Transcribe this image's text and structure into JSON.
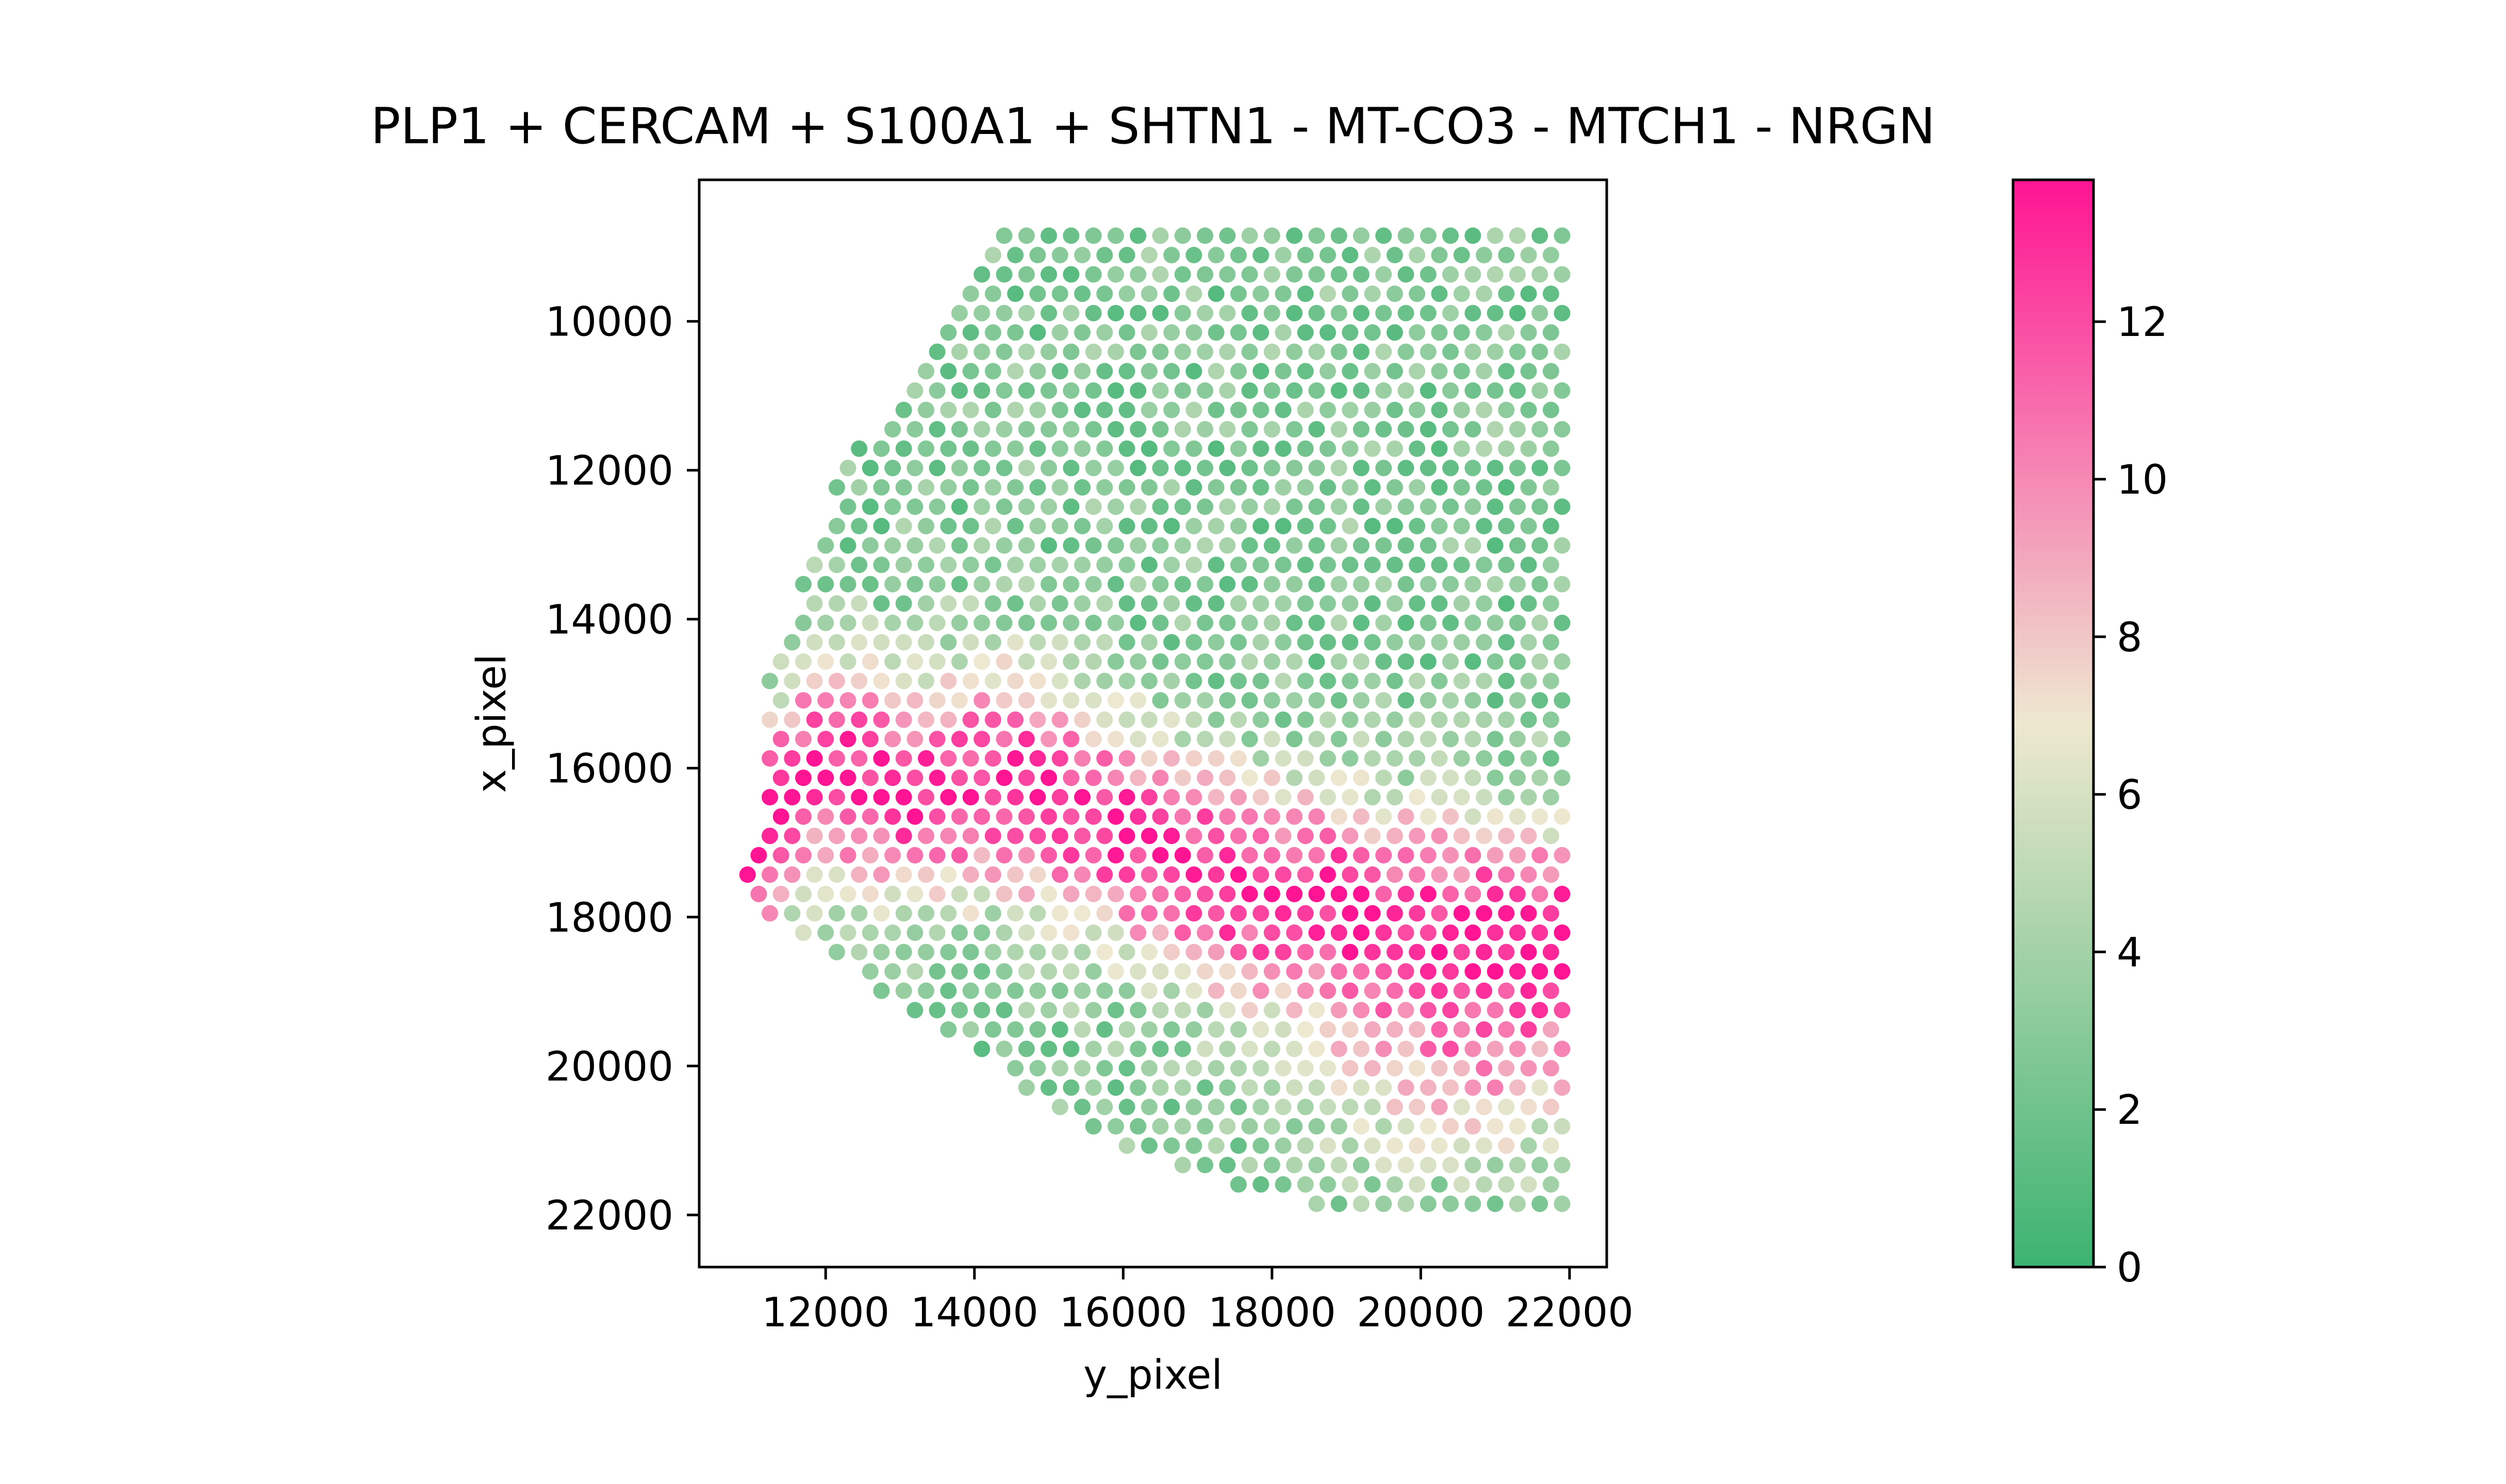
{
  "chart_data": {
    "type": "scatter",
    "title": "PLP1 + CERCAM + S100A1 + SHTN1 - MT-CO3 - MTCH1 - NRGN",
    "xlabel": "y_pixel",
    "ylabel": "x_pixel",
    "x_ticks": [
      "12000",
      "14000",
      "16000",
      "18000",
      "20000",
      "22000"
    ],
    "y_ticks": [
      "10000",
      "12000",
      "14000",
      "16000",
      "18000",
      "20000",
      "22000"
    ],
    "xlim": [
      10300,
      22500
    ],
    "ylim": [
      22700,
      8100
    ],
    "y_inverted": true,
    "grid": false,
    "legend": "none",
    "colorbar": {
      "min": 0,
      "max": 13.8,
      "ticks": [
        "0",
        "2",
        "4",
        "6",
        "8",
        "10",
        "12"
      ],
      "colormap": [
        "#3cb371",
        "#eee8d0",
        "#ff1493"
      ]
    },
    "spot_grid": {
      "x_start": 10800,
      "x_end": 22000,
      "x_step": 300,
      "y_start": 8850,
      "y_end": 22100,
      "y_step": 260
    },
    "outline": {
      "left_edge": [
        [
          8850,
          14400
        ],
        [
          9850,
          13800
        ],
        [
          10800,
          13200
        ],
        [
          11250,
          12800
        ],
        [
          12000,
          12200
        ],
        [
          12800,
          11900
        ],
        [
          13500,
          11700
        ],
        [
          14300,
          11300
        ],
        [
          15200,
          11200
        ],
        [
          17000,
          11200
        ],
        [
          17300,
          10900
        ],
        [
          17700,
          10800
        ],
        [
          18100,
          11100
        ],
        [
          18350,
          11800
        ],
        [
          18600,
          12200
        ],
        [
          19100,
          12900
        ],
        [
          19400,
          13300
        ],
        [
          19800,
          14000
        ],
        [
          20300,
          14600
        ]
      ],
      "bottom_edge": [
        [
          20300,
          14600
        ],
        [
          20700,
          15300
        ],
        [
          21100,
          16000
        ],
        [
          21500,
          17000
        ],
        [
          21800,
          18000
        ],
        [
          22000,
          19500
        ],
        [
          22100,
          20500
        ],
        [
          21950,
          21300
        ],
        [
          21700,
          21900
        ]
      ]
    },
    "value_field": {
      "base": 2.8,
      "band": [
        [
          11000,
          17200
        ],
        [
          11800,
          16000
        ],
        [
          13000,
          16300
        ],
        [
          14500,
          16200
        ],
        [
          16000,
          16900
        ],
        [
          17500,
          17600
        ],
        [
          19000,
          17900
        ],
        [
          20500,
          18200
        ],
        [
          22000,
          18300
        ]
      ],
      "band_peak": 10.5,
      "band_halfwidth": 1900,
      "bottom_right_center": [
        20500,
        20200
      ],
      "bottom_right_peak": 4.5,
      "noise": 1.8
    }
  }
}
